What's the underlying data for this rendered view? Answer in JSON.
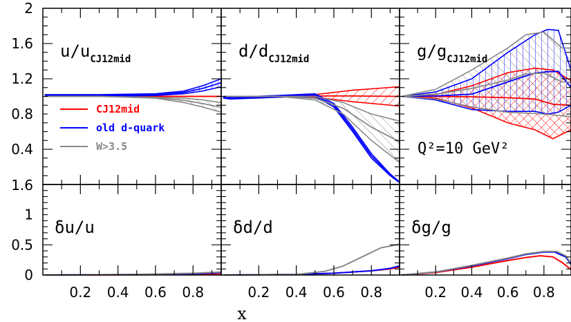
{
  "chart_data": {
    "type": "line",
    "xlabel": "x",
    "xtick_labels": [
      "0.2",
      "0.4",
      "0.6",
      "0.8"
    ],
    "top_ytick_labels": [
      "0.4",
      "0.8",
      "1.2",
      "1.6",
      "2"
    ],
    "top_ybottom_label": "1.6",
    "bottom_ytick_labels": [
      "0",
      "0.5",
      "1"
    ],
    "xlim": [
      0,
      0.95
    ],
    "top_ylim": [
      0,
      2
    ],
    "bottom_ylim": [
      0,
      1.5
    ],
    "annotation": "Q²=10 GeV²",
    "colors": {
      "CJ12mid": "#ff0000",
      "old d-quark": "#0000ff",
      "W>3.5": "#888888"
    },
    "legend": {
      "placement": "inside top-left panel, lower-left",
      "entries": [
        "CJ12mid",
        "old d-quark",
        "W>3.5"
      ]
    },
    "ratio_panels": [
      {
        "title_main": "u/u",
        "title_sub": "CJ12mid",
        "series": [
          {
            "name": "CJ12mid",
            "x": [
              0.01,
              0.95
            ],
            "upper": [
              1.0,
              1.0
            ],
            "lower": [
              1.0,
              1.0
            ]
          },
          {
            "name": "old d-quark",
            "x": [
              0.01,
              0.3,
              0.6,
              0.75,
              0.85,
              0.95
            ],
            "upper": [
              1.02,
              1.02,
              1.03,
              1.06,
              1.12,
              1.2
            ],
            "lower": [
              1.0,
              1.0,
              1.01,
              1.03,
              1.06,
              1.11
            ]
          },
          {
            "name": "W>3.5",
            "x": [
              0.01,
              0.3,
              0.6,
              0.75,
              0.85,
              0.95
            ],
            "upper": [
              1.0,
              1.0,
              0.99,
              0.98,
              0.96,
              0.93
            ],
            "lower": [
              1.0,
              1.0,
              0.98,
              0.93,
              0.88,
              0.82
            ]
          }
        ]
      },
      {
        "title_main": "d/d",
        "title_sub": "CJ12mid",
        "series": [
          {
            "name": "CJ12mid",
            "x": [
              0.01,
              0.3,
              0.5,
              0.7,
              0.95
            ],
            "upper": [
              1.0,
              1.0,
              1.02,
              1.07,
              1.11
            ],
            "lower": [
              1.0,
              1.0,
              0.99,
              0.94,
              0.89
            ]
          },
          {
            "name": "old d-quark",
            "x": [
              0.01,
              0.05,
              0.3,
              0.5,
              0.6,
              0.7,
              0.8,
              0.9,
              0.95
            ],
            "upper": [
              1.0,
              0.99,
              1.01,
              1.03,
              0.92,
              0.65,
              0.35,
              0.12,
              0.03
            ],
            "lower": [
              0.98,
              0.97,
              0.99,
              1.0,
              0.88,
              0.6,
              0.3,
              0.1,
              0.02
            ]
          },
          {
            "name": "W>3.5",
            "x": [
              0.01,
              0.3,
              0.5,
              0.65,
              0.8,
              0.95
            ],
            "upper": [
              1.0,
              1.0,
              1.0,
              0.93,
              0.8,
              0.72
            ],
            "lower": [
              1.0,
              1.0,
              0.96,
              0.8,
              0.5,
              0.25
            ]
          }
        ]
      },
      {
        "title_main": "g/g",
        "title_sub": "CJ12mid",
        "series": [
          {
            "name": "CJ12mid",
            "x": [
              0.01,
              0.2,
              0.4,
              0.6,
              0.75,
              0.85,
              0.95
            ],
            "upper": [
              1.0,
              1.02,
              1.12,
              1.27,
              1.32,
              1.3,
              1.18
            ],
            "lower": [
              1.0,
              0.98,
              0.87,
              0.7,
              0.62,
              0.52,
              0.62
            ]
          },
          {
            "name": "old d-quark",
            "x": [
              0.01,
              0.2,
              0.4,
              0.6,
              0.75,
              0.82,
              0.88,
              0.95
            ],
            "upper": [
              1.0,
              1.05,
              1.2,
              1.5,
              1.7,
              1.76,
              1.75,
              1.3
            ],
            "lower": [
              1.0,
              0.96,
              0.85,
              0.83,
              0.83,
              0.8,
              0.82,
              0.9
            ]
          },
          {
            "name": "W>3.5",
            "x": [
              0.01,
              0.2,
              0.4,
              0.6,
              0.7,
              0.8,
              0.9,
              0.95
            ],
            "upper": [
              1.0,
              1.08,
              1.3,
              1.55,
              1.7,
              1.73,
              1.55,
              1.55
            ],
            "lower": [
              1.0,
              0.97,
              0.88,
              0.82,
              0.81,
              0.8,
              0.78,
              0.77
            ]
          }
        ]
      }
    ],
    "uncertainty_panels": [
      {
        "title": "δu/u",
        "series": [
          {
            "name": "CJ12mid",
            "x": [
              0.01,
              0.5,
              0.8,
              0.95
            ],
            "y": [
              0.0,
              0.005,
              0.01,
              0.015
            ]
          },
          {
            "name": "old d-quark",
            "x": [
              0.01,
              0.5,
              0.8,
              0.95
            ],
            "y": [
              0.0,
              0.01,
              0.02,
              0.04
            ]
          },
          {
            "name": "W>3.5",
            "x": [
              0.01,
              0.5,
              0.8,
              0.95
            ],
            "y": [
              0.0,
              0.01,
              0.03,
              0.05
            ]
          }
        ]
      },
      {
        "title": "δd/d",
        "series": [
          {
            "name": "CJ12mid",
            "x": [
              0.01,
              0.4,
              0.6,
              0.8,
              0.9,
              0.95
            ],
            "y": [
              0.0,
              0.01,
              0.03,
              0.07,
              0.1,
              0.13
            ]
          },
          {
            "name": "old d-quark",
            "x": [
              0.01,
              0.4,
              0.6,
              0.8,
              0.9,
              0.95
            ],
            "y": [
              0.0,
              0.01,
              0.03,
              0.07,
              0.11,
              0.15
            ]
          },
          {
            "name": "W>3.5",
            "x": [
              0.01,
              0.4,
              0.55,
              0.65,
              0.75,
              0.85,
              0.95
            ],
            "y": [
              0.0,
              0.01,
              0.06,
              0.15,
              0.3,
              0.45,
              0.51
            ]
          }
        ]
      },
      {
        "title": "δg/g",
        "series": [
          {
            "name": "CJ12mid",
            "x": [
              0.01,
              0.2,
              0.4,
              0.6,
              0.7,
              0.78,
              0.85,
              0.9,
              0.95
            ],
            "y": [
              0.0,
              0.04,
              0.13,
              0.24,
              0.29,
              0.32,
              0.3,
              0.21,
              0.09
            ]
          },
          {
            "name": "old d-quark",
            "x": [
              0.01,
              0.2,
              0.4,
              0.6,
              0.7,
              0.8,
              0.86,
              0.92,
              0.95
            ],
            "y": [
              0.0,
              0.05,
              0.15,
              0.27,
              0.34,
              0.38,
              0.38,
              0.3,
              0.18
            ]
          },
          {
            "name": "W>3.5",
            "x": [
              0.01,
              0.2,
              0.4,
              0.6,
              0.7,
              0.8,
              0.87,
              0.92,
              0.95
            ],
            "y": [
              0.0,
              0.05,
              0.16,
              0.28,
              0.35,
              0.39,
              0.39,
              0.32,
              0.2
            ]
          }
        ]
      }
    ]
  }
}
